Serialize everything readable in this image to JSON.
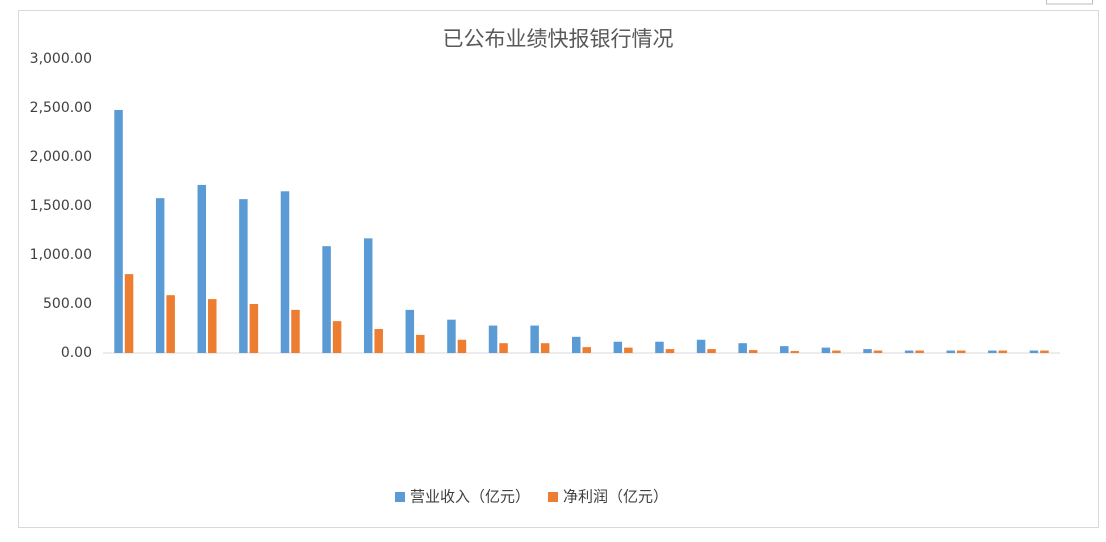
{
  "chart_data": {
    "type": "bar",
    "title": "已公布业绩快报银行情况",
    "categories": [
      null,
      null,
      null,
      null,
      null,
      null,
      null,
      null,
      null,
      null,
      null,
      null,
      null,
      null,
      null,
      null,
      null,
      null,
      null,
      null,
      null,
      null,
      null
    ],
    "series": [
      {
        "name": "营业收入（亿元）",
        "color": "#5b9bd5",
        "values": [
          2480,
          1580,
          1715,
          1570,
          1650,
          1090,
          1170,
          440,
          340,
          280,
          280,
          165,
          115,
          115,
          135,
          100,
          70,
          55,
          40,
          25,
          25,
          25,
          25
        ]
      },
      {
        "name": "净利润（亿元）",
        "color": "#ed7d31",
        "values": [
          805,
          590,
          550,
          500,
          440,
          325,
          245,
          185,
          135,
          100,
          100,
          60,
          55,
          40,
          40,
          30,
          20,
          25,
          25,
          25,
          25,
          25,
          25
        ]
      }
    ],
    "ylim": [
      0,
      3000
    ],
    "yticks": [
      {
        "value": 0,
        "label": "0.00"
      },
      {
        "value": 500,
        "label": "500.00"
      },
      {
        "value": 1000,
        "label": "1,000.00"
      },
      {
        "value": 1500,
        "label": "1,500.00"
      },
      {
        "value": 2000,
        "label": "2,000.00"
      },
      {
        "value": 2500,
        "label": "2,500.00"
      },
      {
        "value": 3000,
        "label": "3,000.00"
      }
    ],
    "legend": "bottom"
  }
}
